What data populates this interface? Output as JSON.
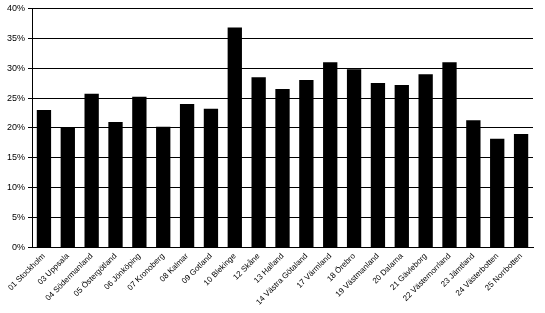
{
  "chart_data": {
    "type": "bar",
    "categories": [
      "01 Stockholm",
      "03 Uppsala",
      "04 Södermanland",
      "05 Östergötland",
      "06 Jönköping",
      "07 Kronoberg",
      "08 Kalmar",
      "09 Gotland",
      "10 Blekinge",
      "12 Skåne",
      "13 Halland",
      "14 Västra Götaland",
      "17 Värmland",
      "18 Örebro",
      "19 Västmanland",
      "20 Dalarna",
      "21 Gävleborg",
      "22 Västernorrland",
      "23 Jämtland",
      "24 Västerbotten",
      "25 Norrbotten"
    ],
    "values": [
      23,
      20,
      25.7,
      21,
      25.2,
      20.2,
      24,
      23.2,
      36.8,
      28.5,
      26.5,
      28,
      31,
      29.8,
      27.5,
      27.2,
      29,
      31,
      21.3,
      18.2,
      19
    ],
    "color": "#000000",
    "ylim": [
      0,
      40
    ],
    "yticks": [
      {
        "value": 0,
        "label": "0%"
      },
      {
        "value": 5,
        "label": "5%"
      },
      {
        "value": 10,
        "label": "10%"
      },
      {
        "value": 15,
        "label": "15%"
      },
      {
        "value": 20,
        "label": "20%"
      },
      {
        "value": 25,
        "label": "25%"
      },
      {
        "value": 30,
        "label": "30%"
      },
      {
        "value": 35,
        "label": "35%"
      },
      {
        "value": 40,
        "label": "40%"
      }
    ],
    "grid": true
  }
}
